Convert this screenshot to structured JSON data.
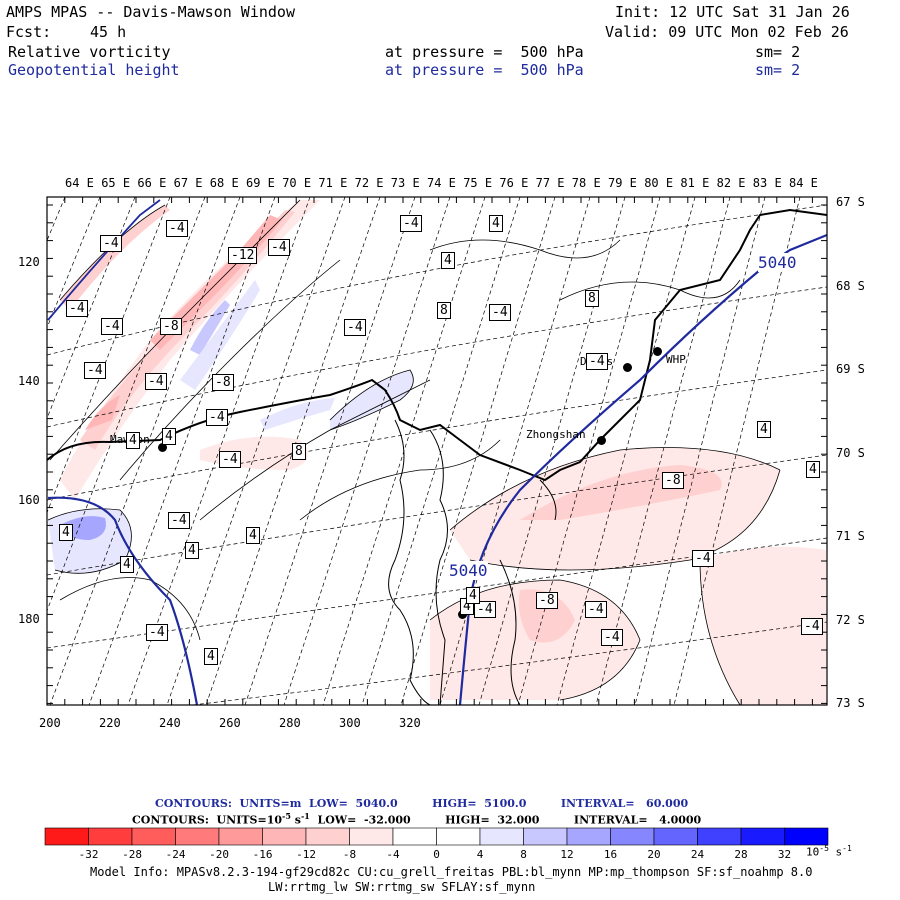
{
  "header": {
    "title": "AMPS MPAS -- Davis-Mawson Window",
    "init": "Init: 12 UTC Sat 31 Jan 26",
    "fcst_label": "Fcst:",
    "fcst_value": "45 h",
    "valid": "Valid: 09 UTC Mon 02 Feb 26",
    "fields": [
      {
        "name": "Relative vorticity",
        "pressure": "at pressure =  500 hPa",
        "sm": "sm= 2",
        "color": "#000000"
      },
      {
        "name": "Geopotential height",
        "pressure": "at pressure =  500 hPa",
        "sm": "sm= 2",
        "color": "#1e2a9e"
      }
    ]
  },
  "map": {
    "top_longitudes": [
      "64 E",
      "65 E",
      "66 E",
      "67 E",
      "68 E",
      "69 E",
      "70 E",
      "71 E",
      "72 E",
      "73 E",
      "74 E",
      "75 E",
      "76 E",
      "77 E",
      "78 E",
      "79 E",
      "80 E",
      "81 E",
      "82 E",
      "83 E",
      "84 E"
    ],
    "right_latitudes": [
      "67 S",
      "68 S",
      "69 S",
      "70 S",
      "71 S",
      "72 S",
      "73 S"
    ],
    "left_y_ticks": [
      "120",
      "140",
      "160",
      "180"
    ],
    "bottom_x_ticks": [
      "200",
      "220",
      "240",
      "260",
      "280",
      "300",
      "320"
    ],
    "stations": [
      {
        "name": "Mawson"
      },
      {
        "name": "Davis"
      },
      {
        "name": "WHP"
      },
      {
        "name": "Zhongshan"
      }
    ],
    "height_labels": [
      "5040",
      "5040"
    ],
    "vorticity_labels": [
      "-4",
      "-4",
      "-4",
      "-12",
      "-4",
      "4",
      "4",
      "-4",
      "-4",
      "-8",
      "-4",
      "-4",
      "8",
      "-8",
      "-4",
      "-4",
      "8",
      "-4",
      "-4",
      "4",
      "4",
      "-4",
      "4",
      "-4",
      "8",
      "4",
      "4",
      "4",
      "-4",
      "4",
      "4",
      "4",
      "-8",
      "-4",
      "-4",
      "-4",
      "4",
      "-8",
      "-4",
      "-4",
      "4"
    ]
  },
  "legend": {
    "contour_line1": "CONTOURS:  UNITS=m  LOW=  5040.0         HIGH=  5100.0         INTERVAL=   60.000",
    "contour_line2_pre": "CONTOURS:  UNITS=10",
    "contour_line2_sup": "-5",
    "contour_line2_post": " s",
    "contour_line2_sup2": "-1",
    "contour_line2_rest": "  LOW=  -32.000         HIGH=  32.000         INTERVAL=   4.0000",
    "colorbar_ticks": [
      "-32",
      "-28",
      "-24",
      "-20",
      "-16",
      "-12",
      "-8",
      "-4",
      "0",
      "4",
      "8",
      "12",
      "16",
      "20",
      "24",
      "28",
      "32"
    ],
    "colorbar_unit": "10",
    "colorbar_unit_sup": "-5",
    "colorbar_unit_s": "s",
    "colorbar_unit_sup2": "-1",
    "colors": [
      "#ff1a1a",
      "#ff3d3d",
      "#ff5c5c",
      "#ff7a7a",
      "#ff9a9a",
      "#ffb6b6",
      "#ffd0d0",
      "#ffe8e8",
      "#ffffff",
      "#ffffff",
      "#e6e6ff",
      "#c8c8ff",
      "#a6a6ff",
      "#8686ff",
      "#6464ff",
      "#4040ff",
      "#1a1aff",
      "#0000ff"
    ]
  },
  "footer": {
    "line1": "Model Info: MPASv8.2.3-194-gf29cd82c CU:cu_grell_freitas PBL:bl_mynn MP:mp_thompson SF:sf_noahmp 8.0",
    "line2": "LW:rrtmg_lw SW:rrtmg_sw SFLAY:sf_mynn"
  }
}
